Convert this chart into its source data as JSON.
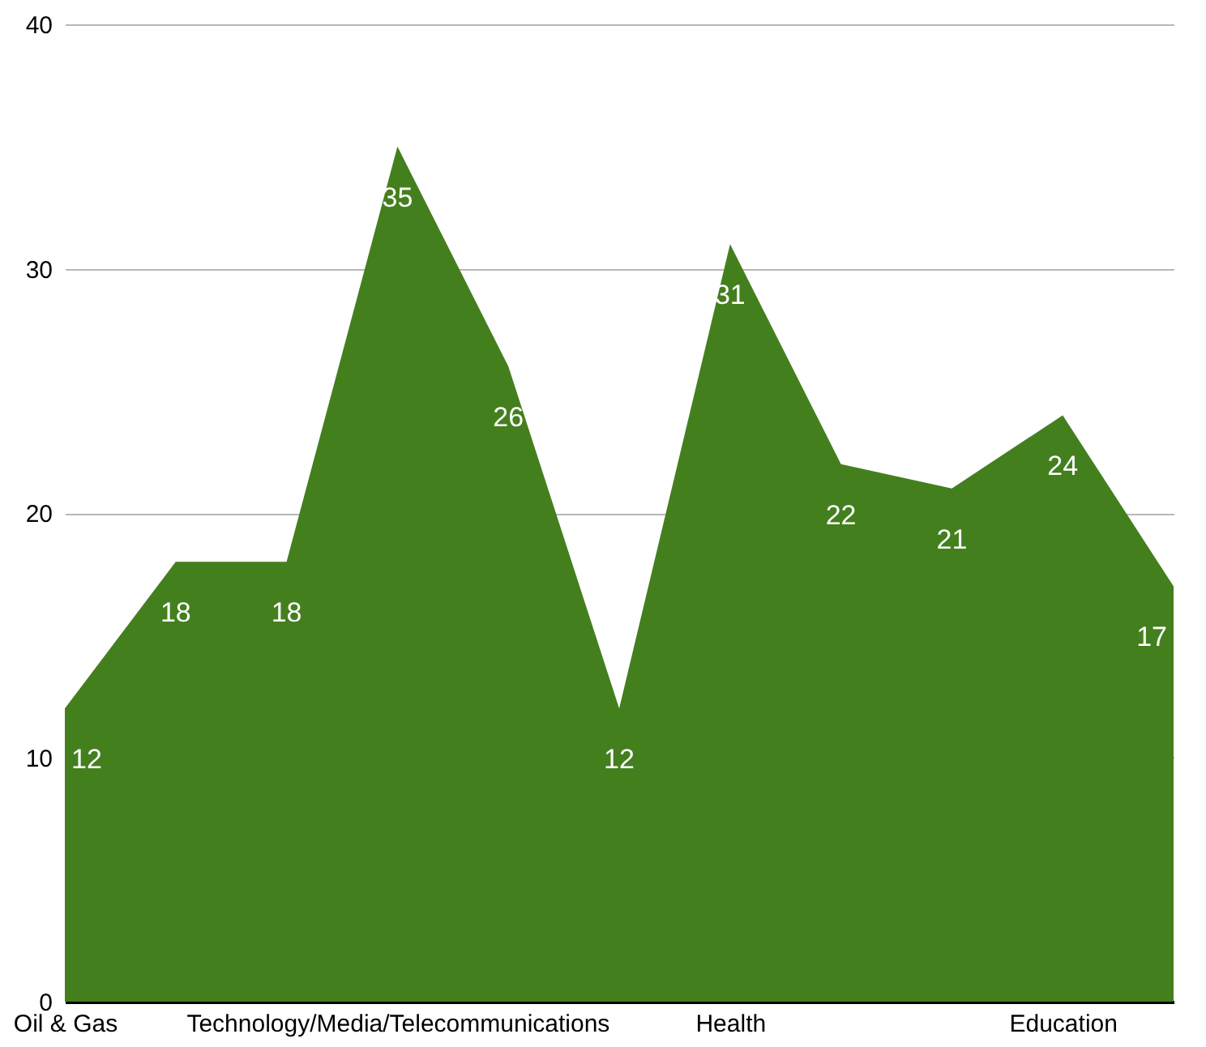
{
  "chart_data": {
    "type": "area",
    "categories": [
      "Oil & Gas",
      null,
      null,
      "Technology/Media/Telecommunications",
      null,
      null,
      "Health",
      null,
      null,
      "Education",
      null
    ],
    "values": [
      12,
      18,
      18,
      35,
      26,
      12,
      31,
      22,
      21,
      24,
      17
    ],
    "color": "#447f1e",
    "ylim": [
      0,
      40
    ],
    "yticks": [
      0,
      10,
      20,
      30,
      40
    ],
    "grid": "y",
    "data_labels": true
  }
}
